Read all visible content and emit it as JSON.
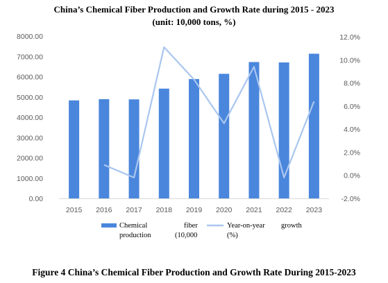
{
  "colors": {
    "bar": "#4a86dc",
    "line": "#a9c6ef",
    "axis": "#d9d9d9",
    "tick_text": "#595959"
  },
  "chart_data": {
    "type": "bar",
    "title": "China’s Chemical Fiber Production and Growth Rate during 2015 - 2023",
    "subtitle": "(unit: 10,000 tons, %)",
    "caption": "Figure 4 China’s Chemical Fiber Production and Growth Rate During 2015-2023",
    "categories": [
      "2015",
      "2016",
      "2017",
      "2018",
      "2019",
      "2020",
      "2021",
      "2022",
      "2023"
    ],
    "y_left": {
      "ticks": [
        "0.00",
        "1000.00",
        "2000.00",
        "3000.00",
        "4000.00",
        "5000.00",
        "6000.00",
        "7000.00",
        "8000.00"
      ],
      "range": [
        0,
        8000
      ]
    },
    "y_right": {
      "ticks": [
        "-2.0%",
        "0.0%",
        "2.0%",
        "4.0%",
        "6.0%",
        "8.0%",
        "10.0%",
        "12.0%"
      ],
      "range": [
        -2,
        12
      ]
    },
    "series": [
      {
        "name": "Chemical fiber production (10,000",
        "type": "bar",
        "axis": "left",
        "values": [
          4830,
          4890,
          4880,
          5410,
          5880,
          6140,
          6720,
          6700,
          7130
        ]
      },
      {
        "name": "Year-on-year growth (%)",
        "type": "line",
        "axis": "right",
        "values": [
          null,
          0.9,
          -0.2,
          11.1,
          8.3,
          4.5,
          9.4,
          -0.2,
          6.4
        ]
      }
    ],
    "legend": {
      "bar_lines": [
        "Chemical",
        "fiber",
        "production",
        "(10,000"
      ],
      "line_lines": [
        "Year-on-year",
        "growth",
        "(%)"
      ],
      "position": "bottom"
    },
    "grid": false
  }
}
